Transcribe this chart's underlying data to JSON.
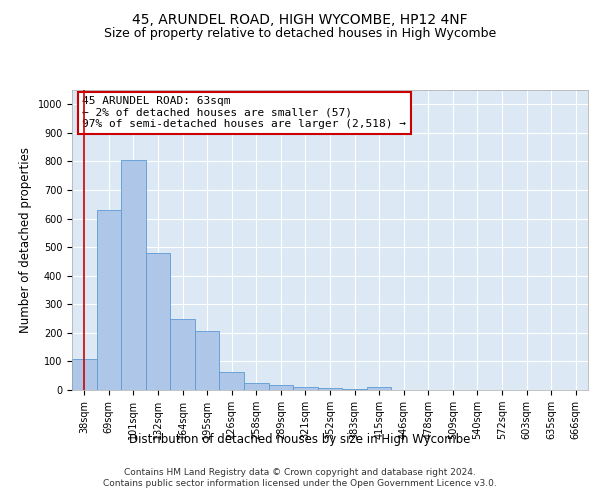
{
  "title": "45, ARUNDEL ROAD, HIGH WYCOMBE, HP12 4NF",
  "subtitle": "Size of property relative to detached houses in High Wycombe",
  "xlabel": "Distribution of detached houses by size in High Wycombe",
  "ylabel": "Number of detached properties",
  "footer_line1": "Contains HM Land Registry data © Crown copyright and database right 2024.",
  "footer_line2": "Contains public sector information licensed under the Open Government Licence v3.0.",
  "categories": [
    "38sqm",
    "69sqm",
    "101sqm",
    "132sqm",
    "164sqm",
    "195sqm",
    "226sqm",
    "258sqm",
    "289sqm",
    "321sqm",
    "352sqm",
    "383sqm",
    "415sqm",
    "446sqm",
    "478sqm",
    "509sqm",
    "540sqm",
    "572sqm",
    "603sqm",
    "635sqm",
    "666sqm"
  ],
  "values": [
    108,
    630,
    805,
    480,
    248,
    205,
    62,
    25,
    18,
    12,
    8,
    5,
    10,
    0,
    0,
    0,
    0,
    0,
    0,
    0,
    0
  ],
  "bar_color": "#aec6e8",
  "bar_edge_color": "#5b9bd5",
  "highlight_line_color": "#cc0000",
  "annotation_line1": "45 ARUNDEL ROAD: 63sqm",
  "annotation_line2": "← 2% of detached houses are smaller (57)",
  "annotation_line3": "97% of semi-detached houses are larger (2,518) →",
  "annotation_box_color": "#ffffff",
  "annotation_box_edge_color": "#cc0000",
  "ylim": [
    0,
    1050
  ],
  "yticks": [
    0,
    100,
    200,
    300,
    400,
    500,
    600,
    700,
    800,
    900,
    1000
  ],
  "plot_bg_color": "#dce9f5",
  "title_fontsize": 10,
  "subtitle_fontsize": 9,
  "axis_label_fontsize": 8.5,
  "tick_fontsize": 7,
  "annotation_fontsize": 8,
  "footer_fontsize": 6.5
}
